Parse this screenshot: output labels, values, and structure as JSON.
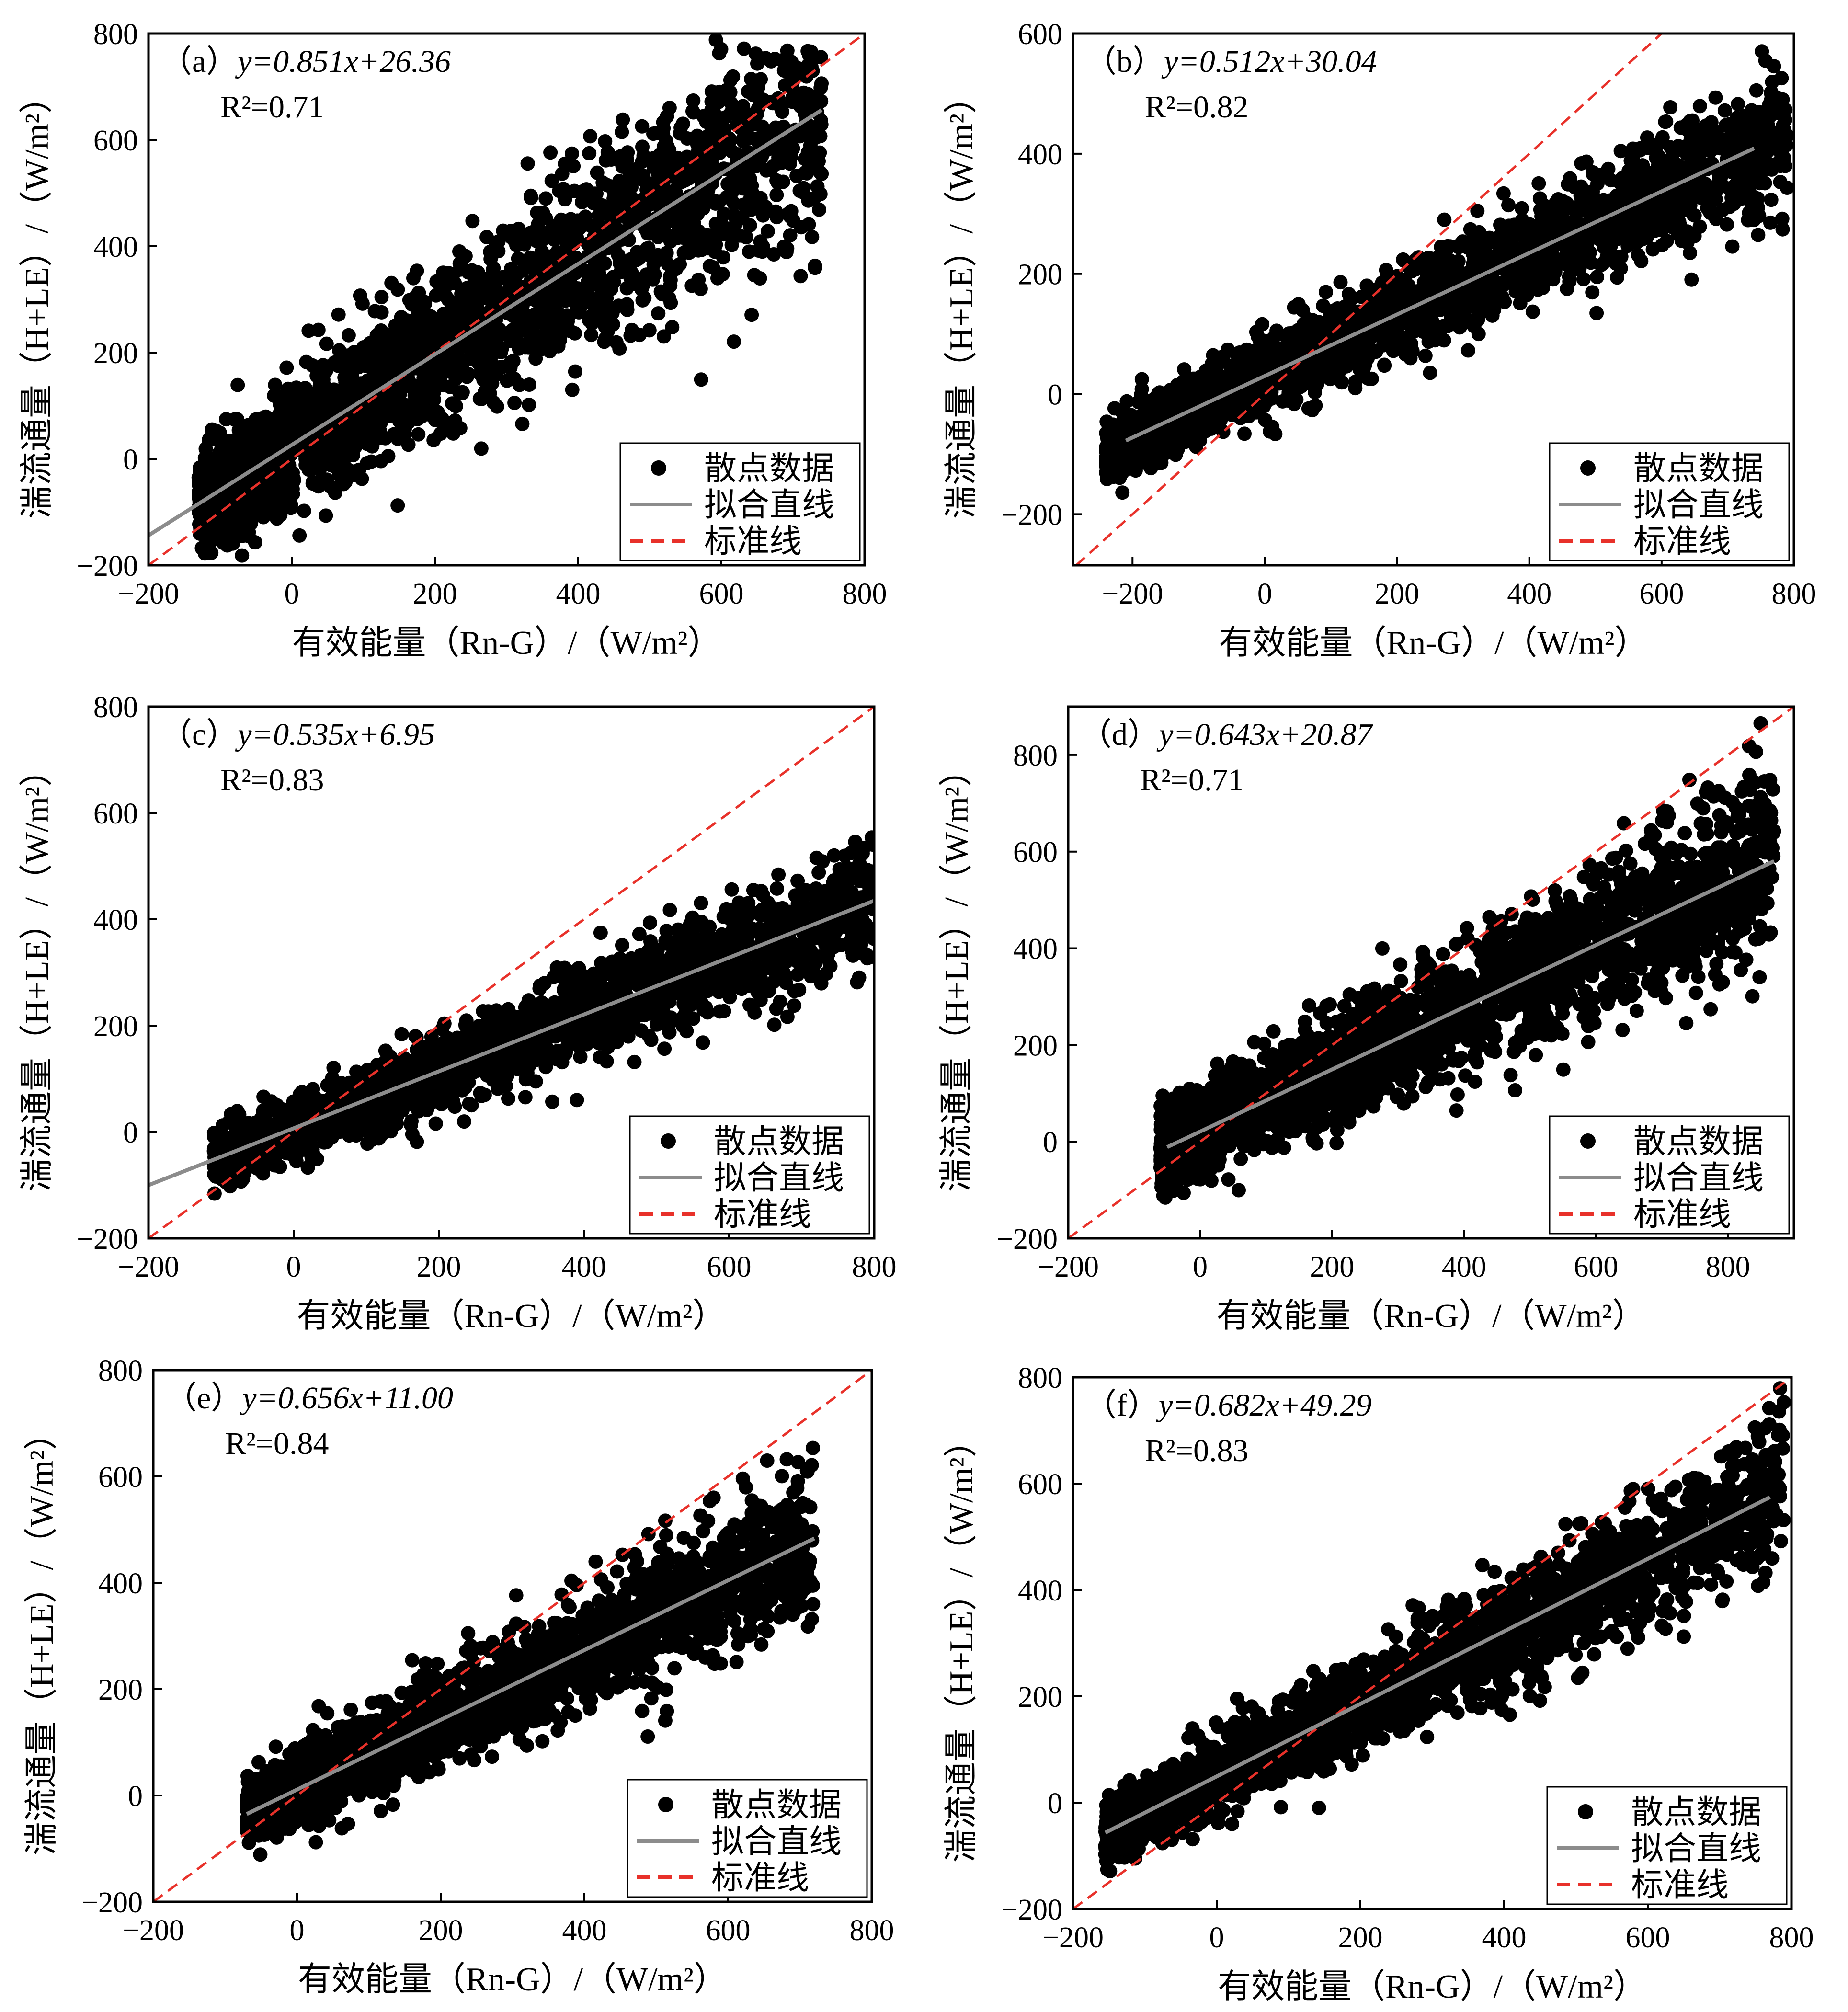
{
  "figure": {
    "panels": [
      {
        "id": "a",
        "label": "（a）",
        "equation": "y=0.851x+26.36",
        "r2": "R²=0.71"
      },
      {
        "id": "b",
        "label": "（b）",
        "equation": "y=0.512x+30.04",
        "r2": "R²=0.82"
      },
      {
        "id": "c",
        "label": "（c）",
        "equation": "y=0.535x+6.95",
        "r2": "R²=0.83"
      },
      {
        "id": "d",
        "label": "（d）",
        "equation": "y=0.643x+20.87",
        "r2": "R²=0.71"
      },
      {
        "id": "e",
        "label": "（e）",
        "equation": "y=0.656x+11.00",
        "r2": "R²=0.84"
      },
      {
        "id": "f",
        "label": "（f）",
        "equation": "y=0.682x+49.29",
        "r2": "R²=0.83"
      }
    ]
  },
  "chart_data": [
    {
      "type": "scatter",
      "panel": "a",
      "title": "（a）y=0.851x+26.36  R²=0.71",
      "xlabel": "有效能量（Rn-G）/（W/m²）",
      "ylabel": "湍流通量（H+LE）/（W/m²）",
      "xlim": [
        -200,
        800
      ],
      "ylim": [
        -200,
        800
      ],
      "xticks": [
        -200,
        0,
        200,
        400,
        600,
        800
      ],
      "yticks": [
        -200,
        0,
        200,
        400,
        600,
        800
      ],
      "fit": {
        "slope": 0.851,
        "intercept": 26.36,
        "x_range": [
          -200,
          740
        ],
        "r2": 0.71
      },
      "reference": {
        "slope": 1,
        "intercept": 0
      },
      "cloud": {
        "x_min": -130,
        "x_max": 740,
        "y_sd": 90
      },
      "legend": {
        "position": "bottom-right",
        "entries": [
          "散点数据",
          "拟合直线",
          "标准线"
        ]
      },
      "colors": {
        "points": "#000000",
        "fit": "#8c8c8c",
        "reference": "#e8312a"
      }
    },
    {
      "type": "scatter",
      "panel": "b",
      "title": "（b）y=0.512x+30.04  R²=0.82",
      "xlabel": "有效能量（Rn-G）/（W/m²）",
      "ylabel": "湍流通量（H+LE）/（W/m²）",
      "xlim": [
        -290,
        800
      ],
      "ylim": [
        -285,
        600
      ],
      "xticks": [
        -200,
        0,
        200,
        400,
        600,
        800
      ],
      "yticks": [
        -200,
        0,
        200,
        400,
        600
      ],
      "fit": {
        "slope": 0.512,
        "intercept": 30.04,
        "x_range": [
          -210,
          740
        ],
        "r2": 0.82
      },
      "reference": {
        "slope": 1,
        "intercept": 0
      },
      "cloud": {
        "x_min": -240,
        "x_max": 790,
        "y_sd": 45
      },
      "legend": {
        "position": "bottom-right",
        "entries": [
          "散点数据",
          "拟合直线",
          "标准线"
        ]
      },
      "colors": {
        "points": "#000000",
        "fit": "#8c8c8c",
        "reference": "#e8312a"
      }
    },
    {
      "type": "scatter",
      "panel": "c",
      "title": "（c）y=0.535x+6.95  R²=0.83",
      "xlabel": "有效能量（Rn-G）/（W/m²）",
      "ylabel": "湍流通量（H+LE）/（W/m²）",
      "xlim": [
        -200,
        800
      ],
      "ylim": [
        -200,
        800
      ],
      "xticks": [
        -200,
        0,
        200,
        400,
        600,
        800
      ],
      "yticks": [
        -200,
        0,
        200,
        400,
        600,
        800
      ],
      "fit": {
        "slope": 0.535,
        "intercept": 6.95,
        "x_range": [
          -200,
          800
        ],
        "r2": 0.83
      },
      "reference": {
        "slope": 1,
        "intercept": 0
      },
      "cloud": {
        "x_min": -110,
        "x_max": 800,
        "y_sd": 45
      },
      "legend": {
        "position": "bottom-right",
        "entries": [
          "散点数据",
          "拟合直线",
          "标准线"
        ]
      },
      "colors": {
        "points": "#000000",
        "fit": "#8c8c8c",
        "reference": "#e8312a"
      }
    },
    {
      "type": "scatter",
      "panel": "d",
      "title": "（d）y=0.643x+20.87  R²=0.71",
      "xlabel": "有效能量（Rn-G）/（W/m²）",
      "ylabel": "湍流通量（H+LE）/（W/m²）",
      "xlim": [
        -200,
        900
      ],
      "ylim": [
        -200,
        900
      ],
      "xticks": [
        -200,
        0,
        200,
        400,
        600,
        800
      ],
      "yticks": [
        -200,
        0,
        200,
        400,
        600,
        800
      ],
      "fit": {
        "slope": 0.643,
        "intercept": 20.87,
        "x_range": [
          -50,
          870
        ],
        "r2": 0.71
      },
      "reference": {
        "slope": 1,
        "intercept": 0
      },
      "cloud": {
        "x_min": -60,
        "x_max": 870,
        "y_sd": 75
      },
      "legend": {
        "position": "bottom-right",
        "entries": [
          "散点数据",
          "拟合直线",
          "标准线"
        ]
      },
      "colors": {
        "points": "#000000",
        "fit": "#8c8c8c",
        "reference": "#e8312a"
      }
    },
    {
      "type": "scatter",
      "panel": "e",
      "title": "（e）y=0.656x+11.00  R²=0.84",
      "xlabel": "有效能量（Rn-G）/（W/m²）",
      "ylabel": "湍流通量（H+LE）/（W/m²）",
      "xlim": [
        -200,
        800
      ],
      "ylim": [
        -200,
        800
      ],
      "xticks": [
        -200,
        0,
        200,
        400,
        600,
        800
      ],
      "yticks": [
        -200,
        0,
        200,
        400,
        600,
        800
      ],
      "fit": {
        "slope": 0.656,
        "intercept": 11.0,
        "x_range": [
          -70,
          720
        ],
        "r2": 0.84
      },
      "reference": {
        "slope": 1,
        "intercept": 0
      },
      "cloud": {
        "x_min": -70,
        "x_max": 720,
        "y_sd": 55
      },
      "legend": {
        "position": "bottom-right",
        "entries": [
          "散点数据",
          "拟合直线",
          "标准线"
        ]
      },
      "colors": {
        "points": "#000000",
        "fit": "#8c8c8c",
        "reference": "#e8312a"
      }
    },
    {
      "type": "scatter",
      "panel": "f",
      "title": "（f）y=0.682x+49.29  R²=0.83",
      "xlabel": "有效能量（Rn-G）/（W/m²）",
      "ylabel": "湍流通量（H+LE）/（W/m²）",
      "xlim": [
        -200,
        800
      ],
      "ylim": [
        -200,
        800
      ],
      "xticks": [
        -200,
        0,
        200,
        400,
        600,
        800
      ],
      "yticks": [
        -200,
        0,
        200,
        400,
        600,
        800
      ],
      "fit": {
        "slope": 0.682,
        "intercept": 49.29,
        "x_range": [
          -155,
          770
        ],
        "r2": 0.83
      },
      "reference": {
        "slope": 1,
        "intercept": 0
      },
      "cloud": {
        "x_min": -155,
        "x_max": 790,
        "y_sd": 55
      },
      "legend": {
        "position": "bottom-right",
        "entries": [
          "散点数据",
          "拟合直线",
          "标准线"
        ]
      },
      "colors": {
        "points": "#000000",
        "fit": "#8c8c8c",
        "reference": "#e8312a"
      }
    }
  ]
}
